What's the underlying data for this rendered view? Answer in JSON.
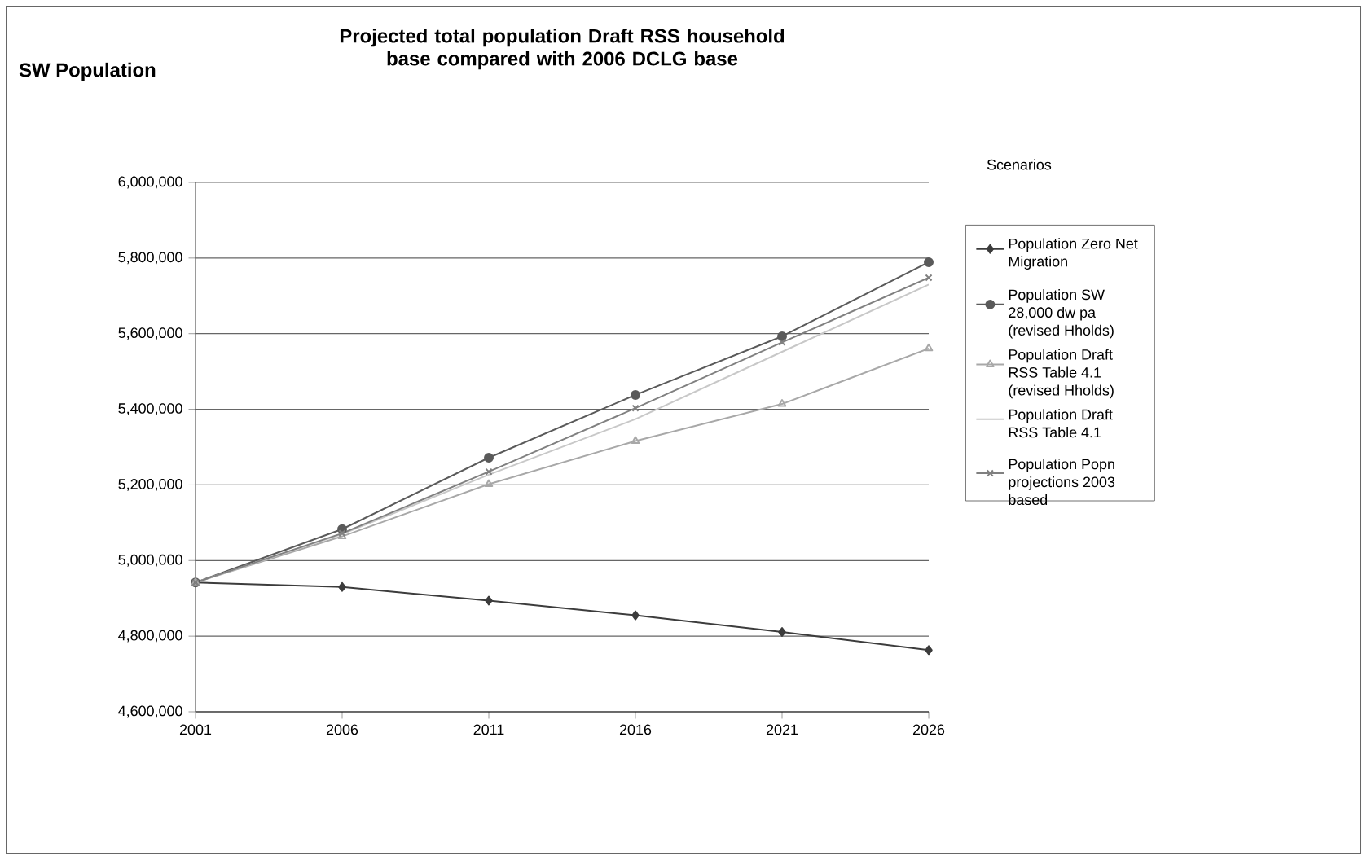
{
  "chart_data": {
    "type": "line",
    "title": "Projected total population  Draft RSS household base compared with 2006 DCLG base",
    "ylabel": "SW Population",
    "legend_title": "Scenarios",
    "x": [
      2001,
      2006,
      2011,
      2016,
      2021,
      2026
    ],
    "xlim": [
      2001,
      2026
    ],
    "xticks": [
      2001,
      2006,
      2011,
      2016,
      2021,
      2026
    ],
    "ylim": [
      4600000,
      6000000
    ],
    "yticks": [
      {
        "value": 4600000,
        "label": "4,600,000"
      },
      {
        "value": 4800000,
        "label": "4,800,000"
      },
      {
        "value": 5000000,
        "label": "5,000,000"
      },
      {
        "value": 5200000,
        "label": "5,200,000"
      },
      {
        "value": 5400000,
        "label": "5,400,000"
      },
      {
        "value": 5600000,
        "label": "5,600,000"
      },
      {
        "value": 5800000,
        "label": "5,800,000"
      },
      {
        "value": 6000000,
        "label": "6,000,000"
      }
    ],
    "grid": "y",
    "legend": "right",
    "series": [
      {
        "name": "Population Zero Net Migration",
        "color": "#3c3c3c",
        "marker": "diamond",
        "values": [
          4942000,
          4930000,
          4894000,
          4855000,
          4811000,
          4763000
        ]
      },
      {
        "name": "Population SW 28,000 dw pa (revised Hholds)",
        "color": "#5a5a5a",
        "marker": "circle",
        "values": [
          4942000,
          5083000,
          5272000,
          5438000,
          5593000,
          5789000
        ]
      },
      {
        "name": "Population Draft RSS Table 4.1 (revised Hholds)",
        "color": "#a8a8a8",
        "marker": "triangle",
        "values": [
          4942000,
          5064000,
          5202000,
          5316000,
          5414000,
          5561000
        ]
      },
      {
        "name": "Population Draft RSS Table 4.1",
        "color": "#c8c8c8",
        "marker": "none",
        "values": [
          4942000,
          5070000,
          5227000,
          5374000,
          5552000,
          5730000
        ]
      },
      {
        "name": "Population Popn projections 2003 based",
        "color": "#808080",
        "marker": "cross",
        "values": [
          4942000,
          5072000,
          5235000,
          5403000,
          5577000,
          5748000
        ]
      }
    ]
  }
}
